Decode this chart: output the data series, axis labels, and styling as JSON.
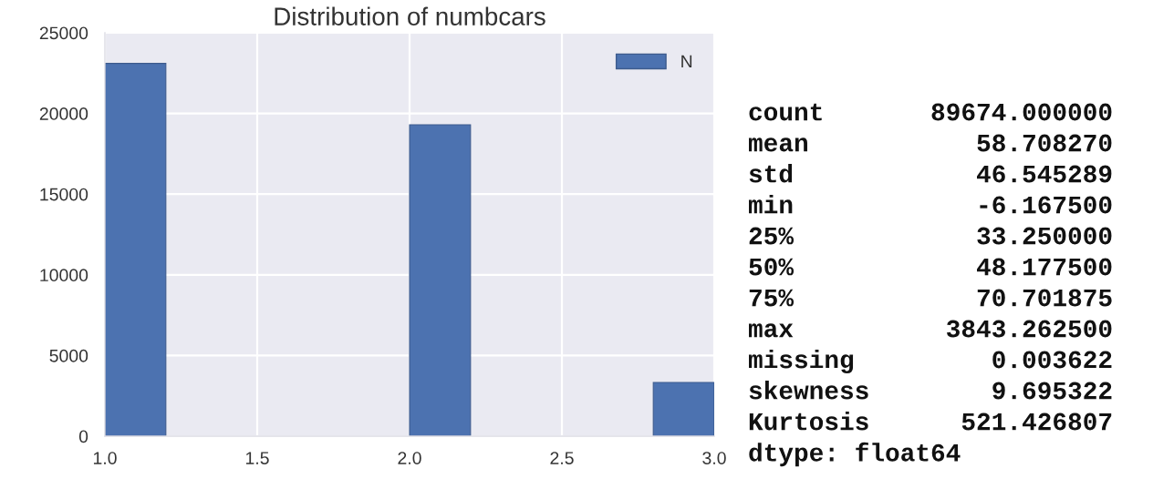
{
  "chart_data": [
    {
      "type": "histogram",
      "title": "Distribution of numbcars",
      "bins": [
        1.0,
        1.2,
        1.4,
        1.6,
        1.8,
        2.0,
        2.2,
        2.4,
        2.6,
        2.8,
        3.0
      ],
      "series": [
        {
          "name": "N",
          "color": "#4c72b0",
          "values": [
            23100,
            0,
            0,
            0,
            0,
            19300,
            0,
            0,
            0,
            3330
          ]
        }
      ],
      "xlim": [
        1,
        3
      ],
      "xticks": [
        {
          "value": 1,
          "label": "1.0"
        },
        {
          "value": 1.5,
          "label": "1.5"
        },
        {
          "value": 2,
          "label": "2.0"
        },
        {
          "value": 2.5,
          "label": "2.5"
        },
        {
          "value": 3,
          "label": "3.0"
        }
      ],
      "ylim": [
        0,
        25000
      ],
      "yticks": [
        0,
        5000,
        10000,
        15000,
        20000,
        25000
      ],
      "grid": true,
      "legend": "top right"
    },
    {
      "type": "other",
      "annotations": [
        "count       89674.000000",
        "mean           58.708270",
        "std            46.545289",
        "min            -6.167500",
        "25%            33.250000",
        "50%            48.177500",
        "75%            70.701875",
        "max          3843.262500",
        "missing         0.003622",
        "skewness        9.695322",
        "Kurtosis      521.426807",
        "dtype: float64"
      ]
    }
  ]
}
